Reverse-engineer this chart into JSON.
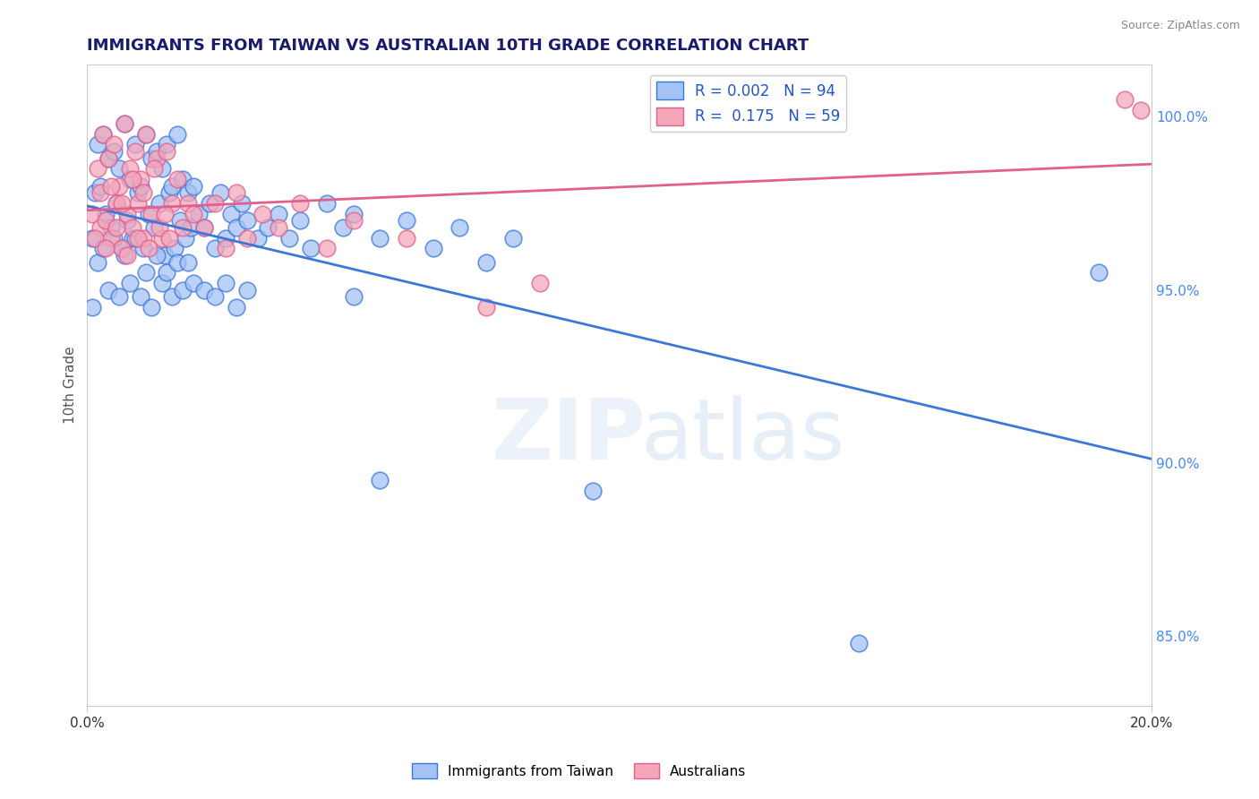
{
  "title": "IMMIGRANTS FROM TAIWAN VS AUSTRALIAN 10TH GRADE CORRELATION CHART",
  "source": "Source: ZipAtlas.com",
  "ylabel": "10th Grade",
  "xlim": [
    0.0,
    20.0
  ],
  "ylim": [
    83.0,
    101.5
  ],
  "yticks_right": [
    85.0,
    90.0,
    95.0,
    100.0
  ],
  "ytick_labels_right": [
    "85.0%",
    "90.0%",
    "95.0%",
    "100.0%"
  ],
  "blue_R": 0.002,
  "blue_N": 94,
  "pink_R": 0.175,
  "pink_N": 59,
  "blue_color": "#a4c2f4",
  "pink_color": "#f4a7b9",
  "blue_line_color": "#3c78d8",
  "pink_line_color": "#e06090",
  "watermark_zip": "ZIP",
  "watermark_atlas": "atlas",
  "legend_label_blue": "Immigrants from Taiwan",
  "legend_label_pink": "Australians",
  "blue_scatter_x": [
    0.1,
    0.15,
    0.2,
    0.25,
    0.3,
    0.35,
    0.4,
    0.45,
    0.5,
    0.55,
    0.6,
    0.65,
    0.7,
    0.75,
    0.8,
    0.85,
    0.9,
    0.95,
    1.0,
    1.05,
    1.1,
    1.15,
    1.2,
    1.25,
    1.3,
    1.35,
    1.4,
    1.45,
    1.5,
    1.55,
    1.6,
    1.65,
    1.7,
    1.75,
    1.8,
    1.85,
    1.9,
    1.95,
    2.0,
    2.1,
    2.2,
    2.3,
    2.4,
    2.5,
    2.6,
    2.7,
    2.8,
    2.9,
    3.0,
    3.2,
    3.4,
    3.6,
    3.8,
    4.0,
    4.2,
    4.5,
    4.8,
    5.0,
    5.5,
    6.0,
    6.5,
    7.0,
    7.5,
    8.0,
    0.1,
    0.2,
    0.3,
    0.4,
    0.5,
    0.6,
    0.7,
    0.8,
    0.9,
    1.0,
    1.1,
    1.2,
    1.3,
    1.4,
    1.5,
    1.6,
    1.7,
    1.8,
    1.9,
    2.0,
    2.2,
    2.4,
    2.6,
    2.8,
    3.0,
    5.0,
    5.5,
    9.5,
    14.5,
    19.0
  ],
  "blue_scatter_y": [
    96.5,
    97.8,
    99.2,
    98.0,
    99.5,
    97.2,
    98.8,
    96.8,
    99.0,
    97.5,
    98.5,
    96.2,
    99.8,
    97.0,
    98.2,
    96.5,
    99.2,
    97.8,
    98.0,
    96.2,
    99.5,
    97.2,
    98.8,
    96.8,
    99.0,
    97.5,
    98.5,
    96.0,
    99.2,
    97.8,
    98.0,
    96.2,
    99.5,
    97.0,
    98.2,
    96.5,
    97.8,
    96.8,
    98.0,
    97.2,
    96.8,
    97.5,
    96.2,
    97.8,
    96.5,
    97.2,
    96.8,
    97.5,
    97.0,
    96.5,
    96.8,
    97.2,
    96.5,
    97.0,
    96.2,
    97.5,
    96.8,
    97.2,
    96.5,
    97.0,
    96.2,
    96.8,
    95.8,
    96.5,
    94.5,
    95.8,
    96.2,
    95.0,
    96.5,
    94.8,
    96.0,
    95.2,
    96.5,
    94.8,
    95.5,
    94.5,
    96.0,
    95.2,
    95.5,
    94.8,
    95.8,
    95.0,
    95.8,
    95.2,
    95.0,
    94.8,
    95.2,
    94.5,
    95.0,
    94.8,
    89.5,
    89.2,
    84.8,
    95.5
  ],
  "pink_scatter_x": [
    0.1,
    0.2,
    0.25,
    0.3,
    0.35,
    0.4,
    0.45,
    0.5,
    0.55,
    0.6,
    0.65,
    0.7,
    0.75,
    0.8,
    0.85,
    0.9,
    0.95,
    1.0,
    1.05,
    1.1,
    1.2,
    1.3,
    1.4,
    1.5,
    1.6,
    1.7,
    1.8,
    1.9,
    2.0,
    2.2,
    2.4,
    2.6,
    2.8,
    3.0,
    3.3,
    3.6,
    4.0,
    4.5,
    5.0,
    6.0,
    7.5,
    0.15,
    0.25,
    0.35,
    0.45,
    0.55,
    0.65,
    0.75,
    0.85,
    0.95,
    1.05,
    1.15,
    1.25,
    1.35,
    1.45,
    1.55,
    8.5,
    19.5,
    19.8
  ],
  "pink_scatter_y": [
    97.2,
    98.5,
    96.8,
    99.5,
    97.0,
    98.8,
    96.5,
    99.2,
    97.5,
    98.0,
    96.2,
    99.8,
    97.2,
    98.5,
    96.8,
    99.0,
    97.5,
    98.2,
    96.5,
    99.5,
    97.2,
    98.8,
    96.5,
    99.0,
    97.5,
    98.2,
    96.8,
    97.5,
    97.2,
    96.8,
    97.5,
    96.2,
    97.8,
    96.5,
    97.2,
    96.8,
    97.5,
    96.2,
    97.0,
    96.5,
    94.5,
    96.5,
    97.8,
    96.2,
    98.0,
    96.8,
    97.5,
    96.0,
    98.2,
    96.5,
    97.8,
    96.2,
    98.5,
    96.8,
    97.2,
    96.5,
    95.2,
    100.5,
    100.2
  ]
}
